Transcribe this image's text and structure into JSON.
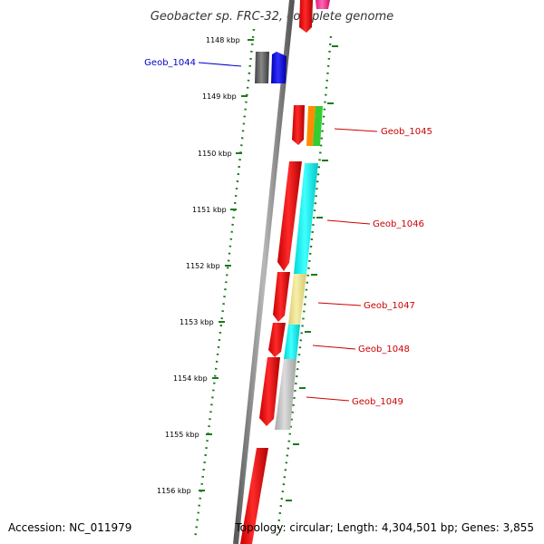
{
  "title": "Geobacter sp. FRC-32, complete genome",
  "accession": "Accession: NC_011979",
  "summary": "Topology: circular; Length: 4,304,501 bp; Genes: 3,855",
  "ticks": [
    {
      "label": "1148 kbp"
    },
    {
      "label": "1149 kbp"
    },
    {
      "label": "1150 kbp"
    },
    {
      "label": "1151 kbp"
    },
    {
      "label": "1152 kbp"
    },
    {
      "label": "1153 kbp"
    },
    {
      "label": "1154 kbp"
    },
    {
      "label": "1155 kbp"
    },
    {
      "label": "1156 kbp"
    }
  ],
  "genes": [
    {
      "label": "Geob_1044",
      "color": "#0000cc"
    },
    {
      "label": "Geob_1045",
      "color": "#cc0000"
    },
    {
      "label": "Geob_1046",
      "color": "#cc0000"
    },
    {
      "label": "Geob_1047",
      "color": "#cc0000"
    },
    {
      "label": "Geob_1048",
      "color": "#cc0000"
    },
    {
      "label": "Geob_1049",
      "color": "#cc0000"
    }
  ],
  "colors": {
    "backbone": "#8a8a8a",
    "scale_dots": "#1a7a1a",
    "cds_red": "#ff0000",
    "cyan": "#00ffff",
    "khaki": "#f0e68c",
    "light_gray": "#c8c8c8",
    "dark_gray": "#666666",
    "blue": "#0000ff",
    "orange": "#ff8c00",
    "green": "#32cd32",
    "pink": "#ff3399"
  }
}
